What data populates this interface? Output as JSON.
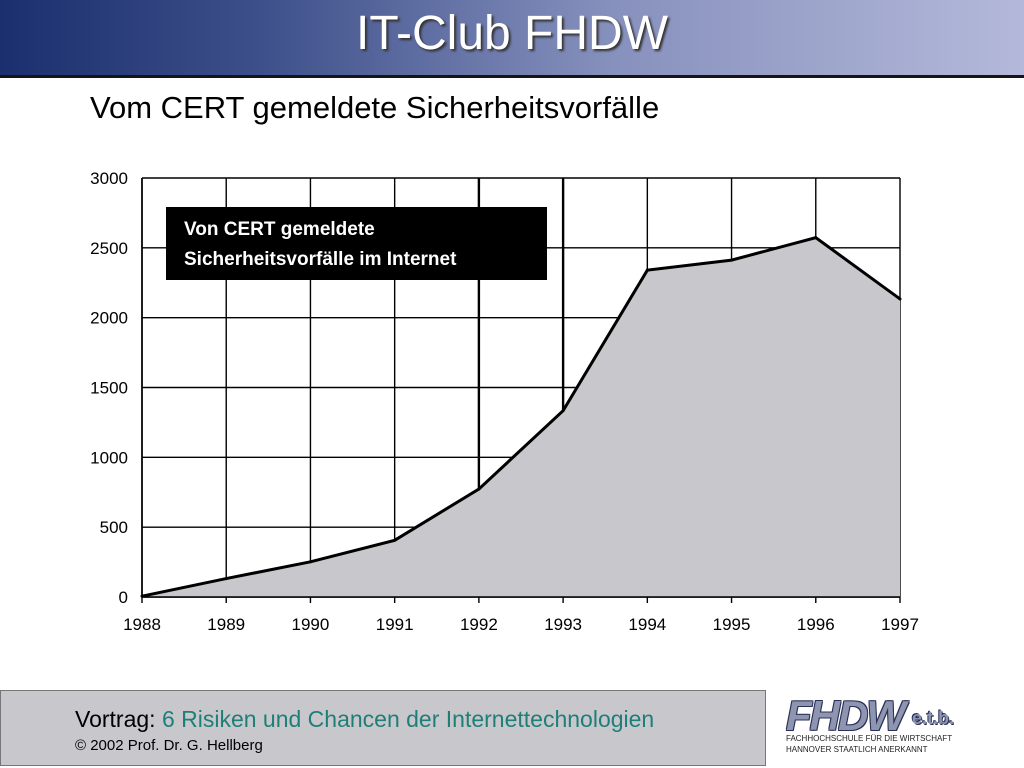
{
  "header": {
    "title": "IT-Club FHDW"
  },
  "slide": {
    "subtitle": "Vom CERT gemeldete Sicherheitsvorfälle"
  },
  "chart_data": {
    "type": "area",
    "title": "",
    "xlabel": "",
    "ylabel": "",
    "categories": [
      "1988",
      "1989",
      "1990",
      "1991",
      "1992",
      "1993",
      "1994",
      "1995",
      "1996",
      "1997"
    ],
    "series": [
      {
        "values": [
          6,
          132,
          252,
          406,
          773,
          1334,
          2340,
          2412,
          2573,
          2134
        ]
      }
    ],
    "ylim": [
      0,
      3000
    ],
    "yticks": [
      0,
      500,
      1000,
      1500,
      2000,
      2500,
      3000
    ],
    "grid": true,
    "legend": {
      "lines": [
        "Von CERT gemeldete",
        "Sicherheitsvorfälle im Internet"
      ],
      "position": "top-left"
    },
    "colors": {
      "fill": "#c8c8cc",
      "line": "#000000",
      "grid": "#000000",
      "legend_bg": "#000000"
    }
  },
  "footer": {
    "label": "Vortrag:",
    "topic": "6 Risiken und Chancen der Internettechnologien",
    "copyright": "© 2002 Prof. Dr. G. Hellberg",
    "colors": {
      "topic": "#1f7f78",
      "background": "#c8c8cc"
    }
  },
  "logo": {
    "main": "FHDW",
    "suffix": "e.t.b.",
    "line1": "FACHHOCHSCHULE FÜR DIE WIRTSCHAFT",
    "line2": "HANNOVER        STAATLICH ANERKANNT"
  }
}
